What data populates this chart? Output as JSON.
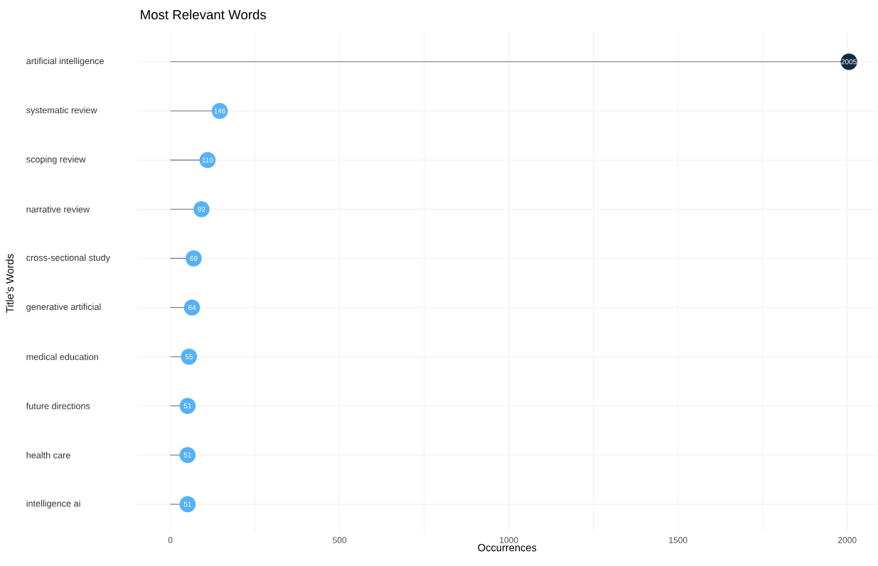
{
  "chart_data": {
    "type": "lollipop",
    "title": "Most Relevant Words",
    "xlabel": "Occurrences",
    "ylabel": "Title's Words",
    "orientation": "horizontal",
    "categories": [
      "artificial intelligence",
      "systematic review",
      "scoping review",
      "narrative review",
      "cross-sectional study",
      "generative artificial",
      "medical education",
      "future directions",
      "health care",
      "intelligence ai"
    ],
    "values": [
      2005,
      146,
      110,
      92,
      69,
      64,
      55,
      51,
      51,
      51
    ],
    "colors": [
      "#132b43",
      "#56b1f7",
      "#56b1f7",
      "#56b1f7",
      "#56b1f7",
      "#56b1f7",
      "#56b1f7",
      "#56b1f7",
      "#56b1f7",
      "#56b1f7"
    ],
    "xlim": [
      -100,
      2090
    ],
    "xticks": [
      0,
      {
        "value": 250,
        "label": null
      },
      500,
      {
        "value": 750,
        "label": null
      },
      1000,
      {
        "value": 1250,
        "label": null
      },
      1500,
      {
        "value": 1750,
        "label": null
      },
      2000
    ],
    "grid": true,
    "data_labels": true
  }
}
